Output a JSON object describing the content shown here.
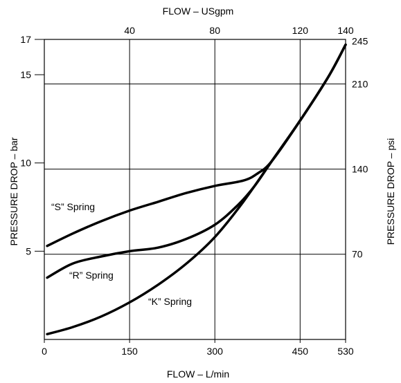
{
  "chart_data": {
    "type": "line",
    "grid": true,
    "top_label": "FLOW – USgpm",
    "xlabel": "FLOW – L/min",
    "ylabel_left": "PRESSURE DROP – bar",
    "ylabel_right": "PRESSURE DROP – psi",
    "xlim": [
      0,
      530
    ],
    "ylim": [
      0,
      17
    ],
    "x_ticks": [
      0,
      150,
      300,
      450,
      530
    ],
    "y_ticks_left": [
      5,
      10,
      15,
      17
    ],
    "top_ticks": [
      {
        "label": "40",
        "at_lpm": 150
      },
      {
        "label": "80",
        "at_lpm": 300
      },
      {
        "label": "120",
        "at_lpm": 450
      },
      {
        "label": "140",
        "at_lpm": 530
      }
    ],
    "right_ticks": [
      {
        "label": "70",
        "at_bar": 4.83
      },
      {
        "label": "140",
        "at_bar": 9.65
      },
      {
        "label": "210",
        "at_bar": 14.48
      },
      {
        "label": "245",
        "at_bar": 16.9
      }
    ],
    "vertical_gridlines_lpm": [
      150,
      300,
      450
    ],
    "horizontal_gridlines_bar": [
      4.83,
      9.65,
      14.48
    ],
    "series": [
      {
        "name": "“S” Spring",
        "x": [
          5,
          50,
          100,
          150,
          200,
          250,
          300,
          350,
          375,
          400,
          450,
          500,
          530
        ],
        "y": [
          5.3,
          6.0,
          6.7,
          7.3,
          7.8,
          8.3,
          8.7,
          9.0,
          9.4,
          10.1,
          12.4,
          14.9,
          16.7
        ]
      },
      {
        "name": "“R” Spring",
        "x": [
          5,
          50,
          100,
          150,
          200,
          250,
          300,
          340,
          370,
          400,
          450,
          500,
          530
        ],
        "y": [
          3.5,
          4.3,
          4.7,
          5.0,
          5.2,
          5.7,
          6.5,
          7.6,
          8.7,
          10.1,
          12.4,
          14.9,
          16.7
        ]
      },
      {
        "name": "“K” Spring",
        "x": [
          5,
          50,
          100,
          150,
          200,
          250,
          300,
          350,
          400,
          450,
          500,
          530
        ],
        "y": [
          0.3,
          0.7,
          1.3,
          2.1,
          3.1,
          4.3,
          5.8,
          7.8,
          10.1,
          12.4,
          14.9,
          16.7
        ]
      }
    ]
  }
}
